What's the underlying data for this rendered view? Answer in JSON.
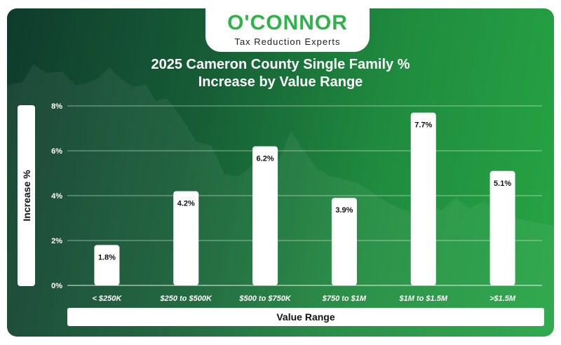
{
  "logo": {
    "wordmark": "O'CONNOR",
    "tagline": "Tax Reduction Experts"
  },
  "colors": {
    "brand_green": "#2fb24a",
    "bar": "#ffffff",
    "text": "#ffffff"
  },
  "chart_data": {
    "type": "bar",
    "title": "2025 Cameron County Single Family % Increase by Value Range",
    "title_lines": [
      "2025 Cameron County Single Family %",
      "Increase by Value Range"
    ],
    "xlabel": "Value Range",
    "ylabel": "Increase %",
    "categories": [
      "< $250K",
      "$250 to $500K",
      "$500 to $750K",
      "$750 to $1M",
      "$1M to $1.5M",
      ">$1.5M"
    ],
    "values": [
      1.8,
      4.2,
      6.2,
      3.9,
      7.7,
      5.1
    ],
    "data_labels": [
      "1.8%",
      "4.2%",
      "6.2%",
      "3.9%",
      "7.7%",
      "5.1%"
    ],
    "ylim": [
      0,
      8
    ],
    "yticks": [
      0,
      2,
      4,
      6,
      8
    ],
    "ytick_labels": [
      "0%",
      "2%",
      "4%",
      "6%",
      "8%"
    ],
    "grid": true,
    "legend": "none"
  }
}
